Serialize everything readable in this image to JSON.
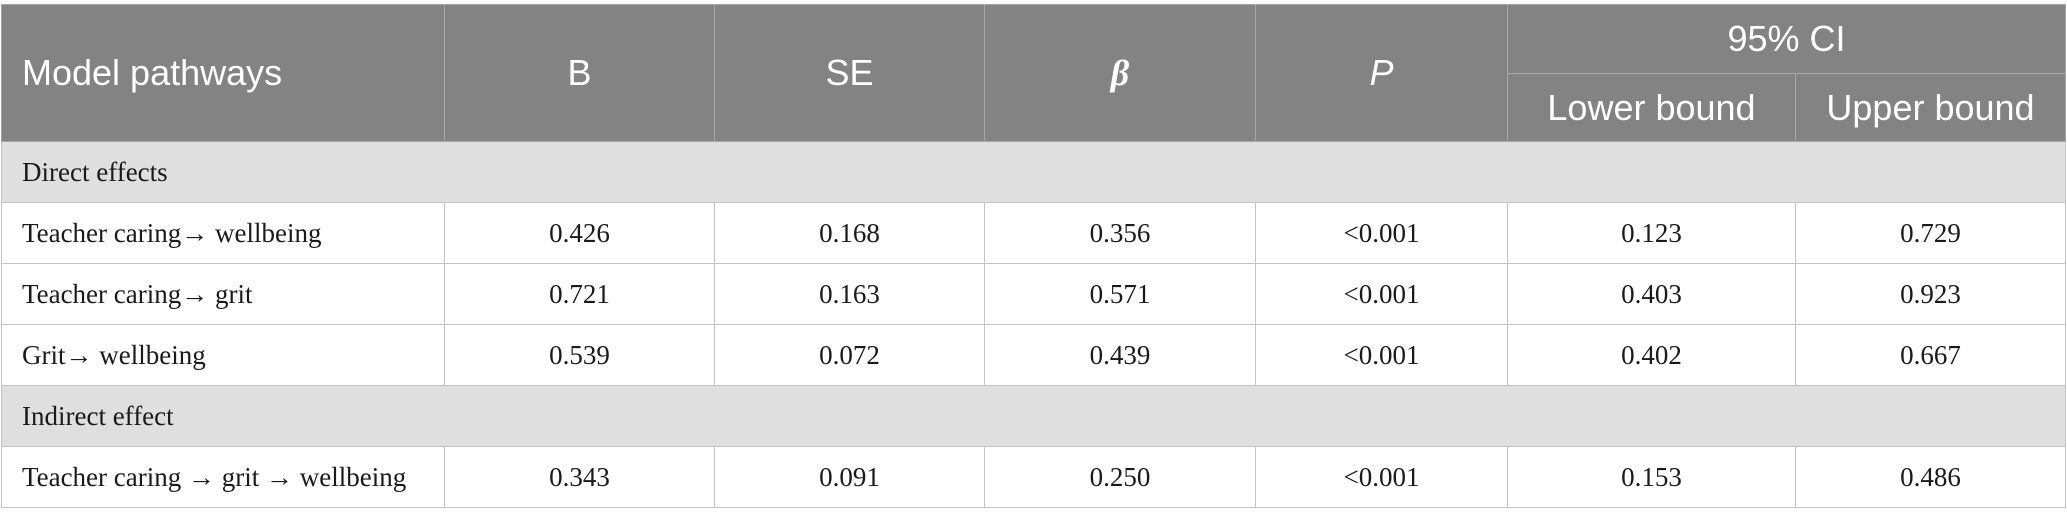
{
  "header": {
    "model_pathways": "Model pathways",
    "b": "B",
    "se": "SE",
    "beta": "β",
    "p": "P",
    "ci": "95% CI",
    "lower_bound": "Lower bound",
    "upper_bound": "Upper bound"
  },
  "sections": {
    "direct": "Direct effects",
    "indirect": "Indirect effect"
  },
  "rows": [
    {
      "path": "Teacher caring→ wellbeing",
      "b": "0.426",
      "se": "0.168",
      "beta": "0.356",
      "p": "<0.001",
      "lower": "0.123",
      "upper": "0.729"
    },
    {
      "path": "Teacher caring→ grit",
      "b": "0.721",
      "se": "0.163",
      "beta": "0.571",
      "p": "<0.001",
      "lower": "0.403",
      "upper": "0.923"
    },
    {
      "path": "Grit→ wellbeing",
      "b": "0.539",
      "se": "0.072",
      "beta": "0.439",
      "p": "<0.001",
      "lower": "0.402",
      "upper": "0.667"
    },
    {
      "path": "Teacher caring → grit → wellbeing",
      "b": "0.343",
      "se": "0.091",
      "beta": "0.250",
      "p": "<0.001",
      "lower": "0.153",
      "upper": "0.486"
    }
  ]
}
